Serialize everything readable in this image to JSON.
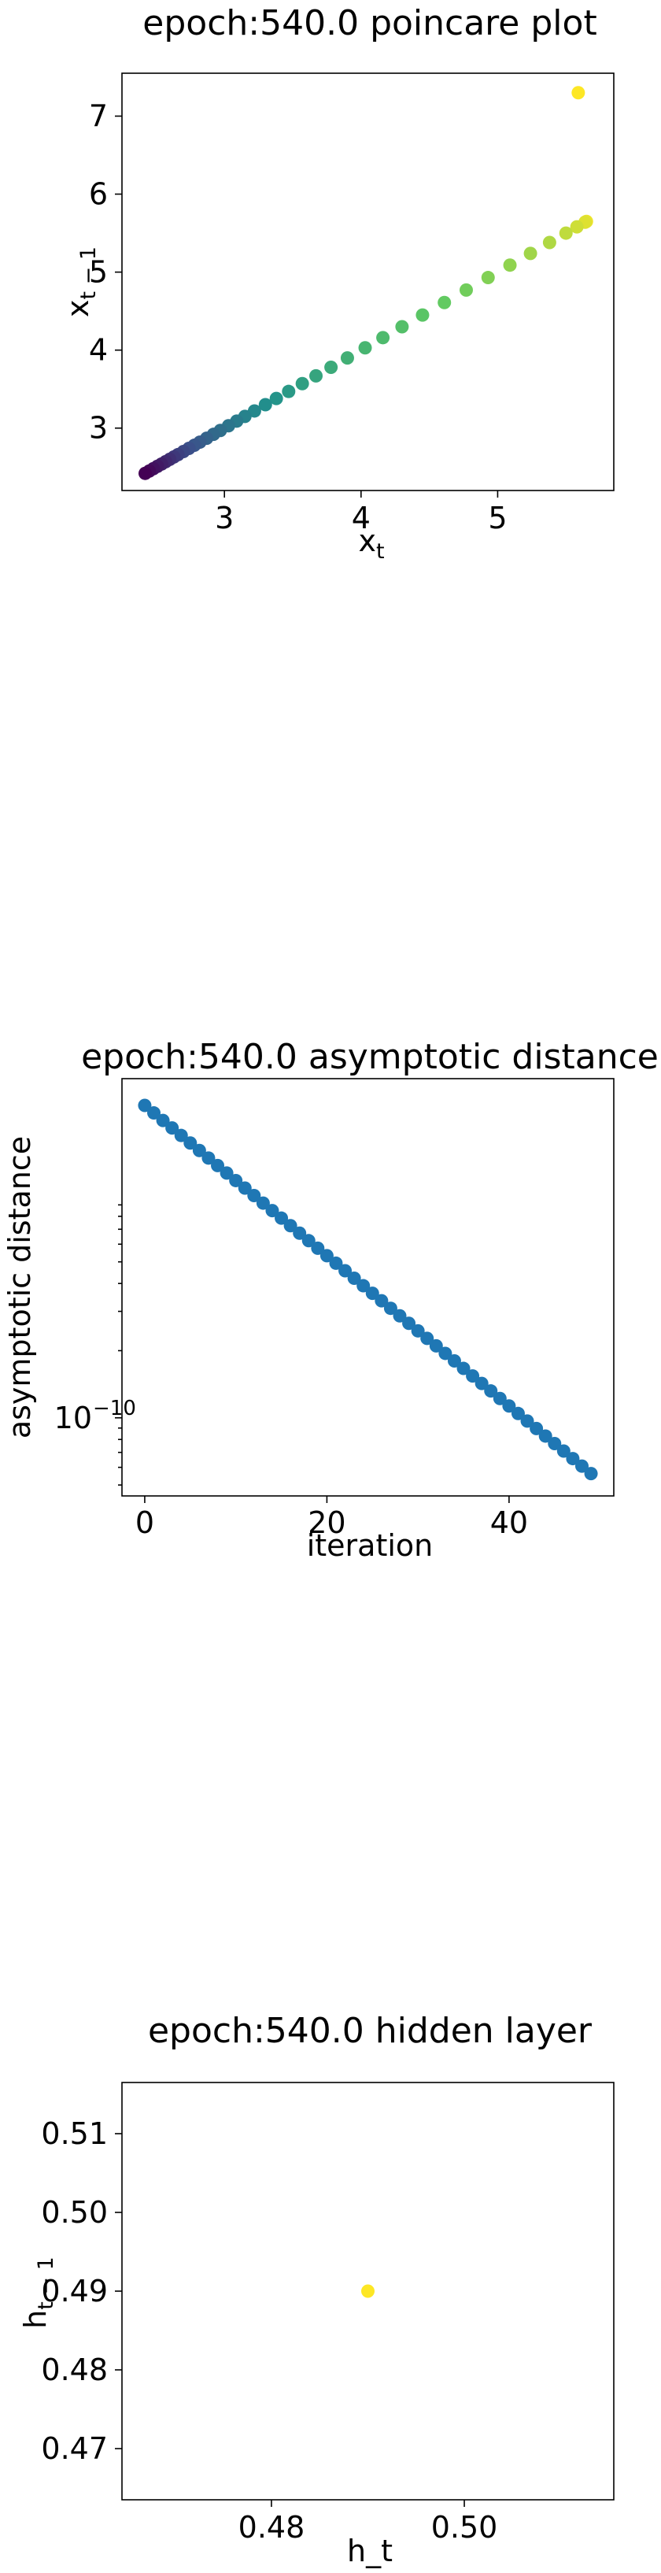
{
  "chart_data": [
    {
      "type": "scatter",
      "title": "epoch:540.0 poincare plot",
      "xlabel": "x",
      "xlabel_sub": "t",
      "ylabel": "x",
      "ylabel_sub": "t − 1",
      "xlim": [
        2.25,
        5.85
      ],
      "ylim": [
        2.2,
        7.55
      ],
      "xticks": [
        3,
        4,
        5
      ],
      "yticks": [
        3,
        4,
        5,
        6,
        7
      ],
      "colormap": "viridis",
      "points_x": [
        2.42,
        2.45,
        2.48,
        2.51,
        2.54,
        2.57,
        2.6,
        2.63,
        2.66,
        2.7,
        2.74,
        2.78,
        2.82,
        2.87,
        2.92,
        2.97,
        3.03,
        3.09,
        3.15,
        3.22,
        3.3,
        3.38,
        3.47,
        3.57,
        3.67,
        3.78,
        3.9,
        4.03,
        4.16,
        4.3,
        4.45,
        4.61,
        4.77,
        4.93,
        5.09,
        5.24,
        5.38,
        5.5,
        5.58,
        5.64,
        5.65,
        5.59
      ],
      "points_y": [
        2.42,
        2.45,
        2.48,
        2.51,
        2.54,
        2.57,
        2.6,
        2.63,
        2.66,
        2.7,
        2.74,
        2.78,
        2.82,
        2.87,
        2.92,
        2.97,
        3.03,
        3.09,
        3.15,
        3.22,
        3.3,
        3.38,
        3.47,
        3.57,
        3.67,
        3.78,
        3.9,
        4.03,
        4.16,
        4.3,
        4.45,
        4.61,
        4.77,
        4.93,
        5.09,
        5.24,
        5.38,
        5.5,
        5.58,
        5.64,
        5.65,
        7.3
      ]
    },
    {
      "type": "scatter",
      "title": "epoch:540.0 asymptotic distance",
      "xlabel": "iteration",
      "ylabel": "asymptotic distance",
      "yscale": "log",
      "xlim": [
        -2.5,
        51.5
      ],
      "xticks": [
        0,
        20,
        40
      ],
      "ytick_label": "10",
      "ytick_exp": "−10",
      "color": "#1f77b4",
      "x": [
        0,
        1,
        2,
        3,
        4,
        5,
        6,
        7,
        8,
        9,
        10,
        11,
        12,
        13,
        14,
        15,
        16,
        17,
        18,
        19,
        20,
        21,
        22,
        23,
        24,
        25,
        26,
        27,
        28,
        29,
        30,
        31,
        32,
        33,
        34,
        35,
        36,
        37,
        38,
        39,
        40,
        41,
        42,
        43,
        44,
        45,
        46,
        47,
        48,
        49
      ],
      "log10_y_start": -8.6,
      "log10_y_end": -10.25
    },
    {
      "type": "scatter",
      "title": "epoch:540.0 hidden layer",
      "xlabel": "h_t",
      "ylabel": "h",
      "ylabel_sub": "t − 1",
      "xlim": [
        0.4645,
        0.5155
      ],
      "ylim": [
        0.4635,
        0.5165
      ],
      "xticks": [
        0.48,
        0.5
      ],
      "xtick_labels": [
        "0.48",
        "0.50"
      ],
      "yticks": [
        0.47,
        0.48,
        0.49,
        0.5,
        0.51
      ],
      "ytick_labels": [
        "0.47",
        "0.48",
        "0.49",
        "0.50",
        "0.51"
      ],
      "color": "#fde725",
      "x": [
        0.49
      ],
      "y": [
        0.49
      ]
    }
  ]
}
